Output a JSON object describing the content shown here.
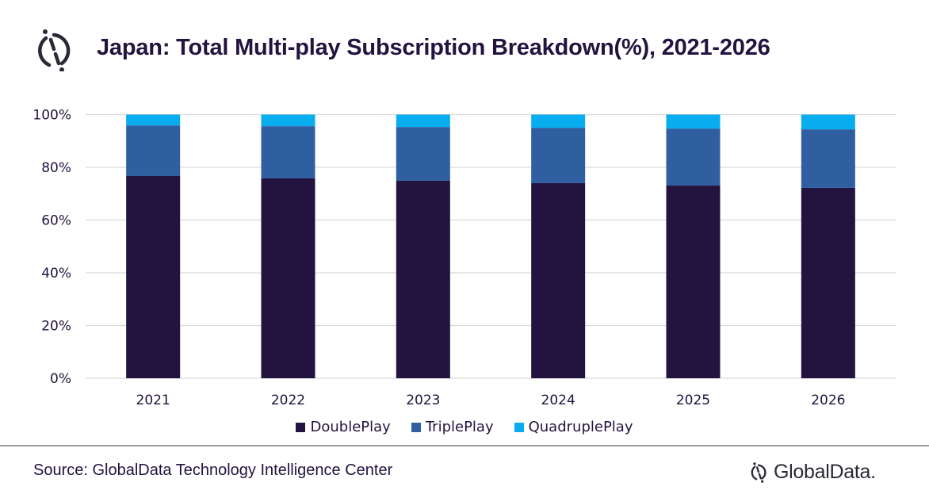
{
  "header": {
    "title": "Japan: Total Multi-play Subscription Breakdown(%), 2021-2026",
    "logo_icon": "globaldata-logo-icon"
  },
  "footer": {
    "source": "Source: GlobalData Technology Intelligence Center",
    "brand": "GlobalData."
  },
  "colors": {
    "DoublePlay": "#22133f",
    "TriplePlay": "#2f5fa0",
    "QuadruplePlay": "#07adef",
    "gridline": "#d9d9d9",
    "text": "#22133f"
  },
  "chart_data": {
    "type": "bar",
    "stacked": true,
    "title": "Japan: Total Multi-play Subscription Breakdown(%), 2021-2026",
    "xlabel": "",
    "ylabel": "",
    "categories": [
      "2021",
      "2022",
      "2023",
      "2024",
      "2025",
      "2026"
    ],
    "series": [
      {
        "name": "DoublePlay",
        "values": [
          76.7,
          75.8,
          74.9,
          74.0,
          73.1,
          72.2
        ]
      },
      {
        "name": "TriplePlay",
        "values": [
          19.2,
          19.8,
          20.4,
          21.0,
          21.6,
          22.2
        ]
      },
      {
        "name": "QuadruplePlay",
        "values": [
          4.1,
          4.4,
          4.7,
          5.0,
          5.3,
          5.6
        ]
      }
    ],
    "ylim": [
      0,
      100
    ],
    "yticks": [
      "0%",
      "20%",
      "40%",
      "60%",
      "80%",
      "100%"
    ],
    "ytick_values": [
      0,
      20,
      40,
      60,
      80,
      100
    ],
    "grid": true,
    "legend": "bottom-center"
  }
}
